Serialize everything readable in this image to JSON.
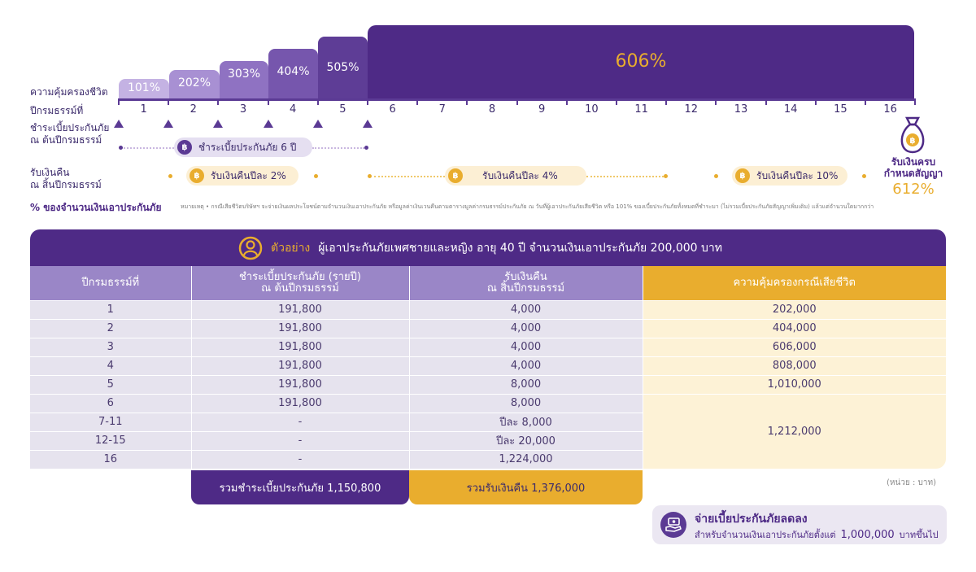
{
  "timeline": {
    "row_labels": {
      "coverage": "ความคุ้มครองชีวิต",
      "policy_year": "ปีกรมธรรม์ที่",
      "premium_line1": "ชำระเบี้ยประกันภัย",
      "premium_line2": "ณ ต้นปีกรมธรรม์",
      "cashback_line1": "รับเงินคืน",
      "cashback_line2": "ณ สิ้นปีกรมธรรม์",
      "percent_caption": "% ของจำนวนเงินเอาประกันภัย"
    },
    "coverage_steps": [
      "101%",
      "202%",
      "303%",
      "404%",
      "505%",
      "606%"
    ],
    "years": [
      "1",
      "2",
      "3",
      "4",
      "5",
      "6",
      "7",
      "8",
      "9",
      "10",
      "11",
      "12",
      "13",
      "14",
      "15",
      "16"
    ],
    "premium_pill": "ชำระเบี้ยประกันภัย 6 ปี",
    "cashback_pills": [
      "รับเงินคืนปีละ 2%",
      "รับเงินคืนปีละ 4%",
      "รับเงินคืนปีละ 10%"
    ],
    "maturity": {
      "line1": "รับเงินครบ",
      "line2": "กำหนดสัญญา",
      "value": "612%"
    },
    "footnote": "หมายเหตุ • กรณีเสียชีวิตบริษัทฯ จะจ่ายเงินผลประโยชน์ตามจำนวนเงินเอาประกันภัย หรือมูลค่าเงินเวนคืนตามตารางมูลค่ากรมธรรม์ประกันภัย ณ วันที่ผู้เอาประกันภัยเสียชีวิต หรือ 101% ของเบี้ยประกันภัยทั้งหมดที่ชำระมา (ไม่รวมเบี้ยประกันภัยสัญญาเพิ่มเติม) แล้วแต่จำนวนใดมากกว่า",
    "coin_symbol": "฿"
  },
  "example": {
    "prefix": "ตัวอย่าง",
    "text": "ผู้เอาประกันภัยเพศชายและหญิง อายุ 40 ปี จำนวนเงินเอาประกันภัย 200,000 บาท",
    "columns": [
      {
        "line1": "ปีกรมธรรม์ที่",
        "line2": ""
      },
      {
        "line1": "ชำระเบี้ยประกันภัย (รายปี)",
        "line2": "ณ ต้นปีกรมธรรม์"
      },
      {
        "line1": "รับเงินคืน",
        "line2": "ณ สิ้นปีกรมธรรม์"
      },
      {
        "line1": "ความคุ้มครองกรณีเสียชีวิต",
        "line2": ""
      }
    ],
    "rows": [
      [
        "1",
        "191,800",
        "4,000",
        "202,000"
      ],
      [
        "2",
        "191,800",
        "4,000",
        "404,000"
      ],
      [
        "3",
        "191,800",
        "4,000",
        "606,000"
      ],
      [
        "4",
        "191,800",
        "4,000",
        "808,000"
      ],
      [
        "5",
        "191,800",
        "8,000",
        "1,010,000"
      ],
      [
        "6",
        "191,800",
        "8,000",
        ""
      ],
      [
        "7-11",
        "-",
        "ปีละ 8,000",
        ""
      ],
      [
        "12-15",
        "-",
        "ปีละ 20,000",
        ""
      ],
      [
        "16",
        "-",
        "1,224,000",
        ""
      ]
    ],
    "merged_death_cover": "1,212,000",
    "total_premium": "รวมชำระเบี้ยประกันภัย 1,150,800",
    "total_cashback": "รวมรับเงินคืน 1,376,000",
    "unit_note": "(หน่วย : บาท)"
  },
  "discount": {
    "title": "จ่ายเบี้ยประกันภัยลดลง",
    "subtitle": "สำหรับจำนวนเงินเอาประกันภัยตั้งแต่",
    "amount": "1,000,000",
    "suffix": "บาทขึ้นไป"
  }
}
